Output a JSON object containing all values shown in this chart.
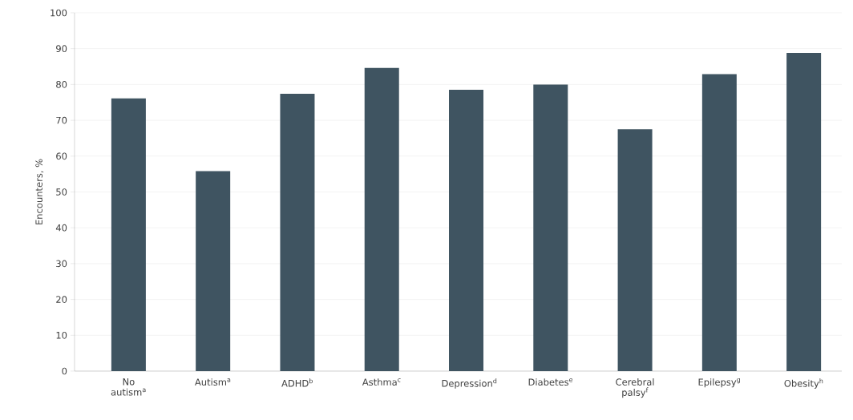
{
  "chart_data": {
    "type": "bar",
    "ylabel": "Encounters, %",
    "categories": [
      "No autism$^{a}$",
      "Autism$^{a}$",
      "ADHD$^{b}$",
      "Asthma$^{c}$",
      "Depression$^{d}$",
      "Diabetes$^{e}$",
      "Cerebral palsy$^{f}$",
      "Epilepsy$^{g}$",
      "Obesity$^{h}$"
    ],
    "values": [
      76.1,
      55.8,
      77.4,
      84.6,
      78.5,
      80.0,
      67.5,
      82.9,
      88.8
    ],
    "color": "#3f5461",
    "ylim": [
      0,
      100
    ],
    "yticks": [
      0,
      10,
      20,
      30,
      40,
      50,
      60,
      70,
      80,
      90,
      100
    ],
    "grid": "y"
  }
}
